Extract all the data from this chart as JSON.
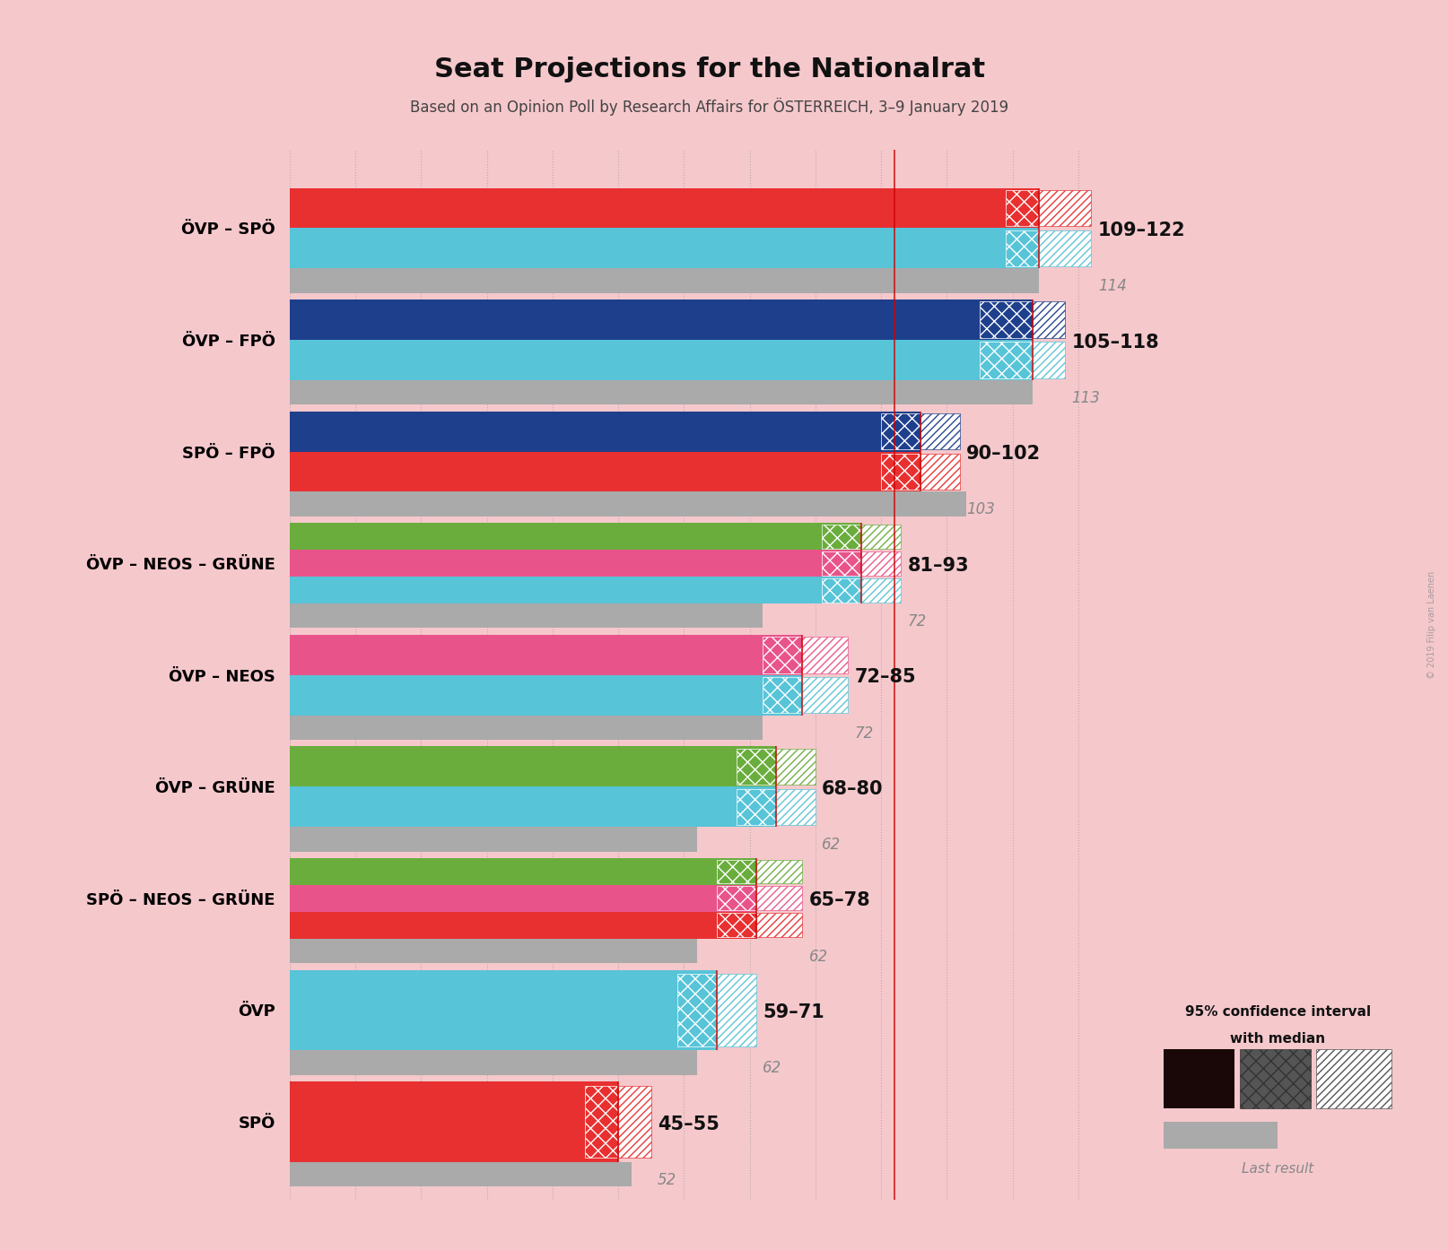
{
  "title": "Seat Projections for the Nationalrat",
  "subtitle": "Based on an Opinion Poll by Research Affairs for ÖSTERREICH, 3–9 January 2019",
  "watermark": "© 2019 Filip van Laenen",
  "background_color": "#f5c8cc",
  "coalitions": [
    {
      "name": "ÖVP – SPÖ",
      "range_label": "109–122",
      "median": 114,
      "ci_low": 109,
      "ci_high": 122,
      "last_result": 114,
      "party_colors": [
        "#57c4d8",
        "#e83030"
      ]
    },
    {
      "name": "ÖVP – FPÖ",
      "range_label": "105–118",
      "median": 113,
      "ci_low": 105,
      "ci_high": 118,
      "last_result": 113,
      "party_colors": [
        "#57c4d8",
        "#1e3f8c"
      ]
    },
    {
      "name": "SPÖ – FPÖ",
      "range_label": "90–102",
      "median": 96,
      "ci_low": 90,
      "ci_high": 102,
      "last_result": 103,
      "party_colors": [
        "#e83030",
        "#1e3f8c"
      ]
    },
    {
      "name": "ÖVP – NEOS – GRÜNE",
      "range_label": "81–93",
      "median": 87,
      "ci_low": 81,
      "ci_high": 93,
      "last_result": 72,
      "party_colors": [
        "#57c4d8",
        "#e8548a",
        "#6aad3d"
      ]
    },
    {
      "name": "ÖVP – NEOS",
      "range_label": "72–85",
      "median": 78,
      "ci_low": 72,
      "ci_high": 85,
      "last_result": 72,
      "party_colors": [
        "#57c4d8",
        "#e8548a"
      ]
    },
    {
      "name": "ÖVP – GRÜNE",
      "range_label": "68–80",
      "median": 74,
      "ci_low": 68,
      "ci_high": 80,
      "last_result": 62,
      "party_colors": [
        "#57c4d8",
        "#6aad3d"
      ]
    },
    {
      "name": "SPÖ – NEOS – GRÜNE",
      "range_label": "65–78",
      "median": 71,
      "ci_low": 65,
      "ci_high": 78,
      "last_result": 62,
      "party_colors": [
        "#e83030",
        "#e8548a",
        "#6aad3d"
      ]
    },
    {
      "name": "ÖVP",
      "range_label": "59–71",
      "median": 65,
      "ci_low": 59,
      "ci_high": 71,
      "last_result": 62,
      "party_colors": [
        "#57c4d8"
      ]
    },
    {
      "name": "SPÖ",
      "range_label": "45–55",
      "median": 50,
      "ci_low": 45,
      "ci_high": 55,
      "last_result": 52,
      "party_colors": [
        "#e83030"
      ]
    }
  ],
  "xmax": 130,
  "majority_line": 92,
  "axis_bg_color": "#f5c8cc",
  "grid_color": "#999999",
  "majority_color": "#cc0000",
  "gray_bar_color": "#aaaaaa",
  "legend_dark_color": "#1a0808",
  "legend_text1": "95% confidence interval",
  "legend_text2": "with median",
  "legend_text3": "Last result"
}
